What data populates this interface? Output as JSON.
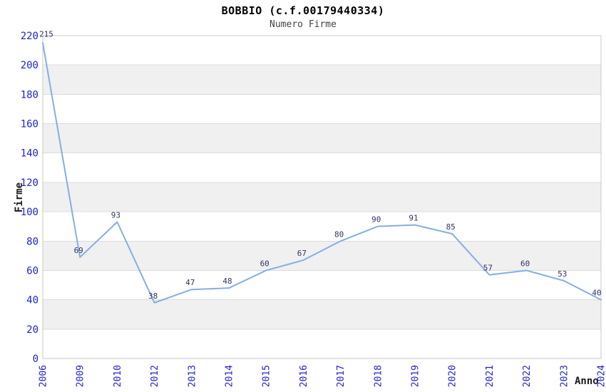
{
  "header": {
    "title": "BOBBIO (c.f.00179440334)",
    "subtitle": "Numero Firme"
  },
  "chart_data": {
    "type": "line",
    "title": "BOBBIO (c.f.00179440334)",
    "subtitle": "Numero Firme",
    "xlabel": "Anno",
    "ylabel": "Firme",
    "categories": [
      "2006",
      "2009",
      "2010",
      "2012",
      "2013",
      "2014",
      "2015",
      "2016",
      "2017",
      "2018",
      "2019",
      "2020",
      "2021",
      "2022",
      "2023",
      "2024"
    ],
    "values": [
      215,
      69,
      93,
      38,
      47,
      48,
      60,
      67,
      80,
      90,
      91,
      85,
      57,
      60,
      53,
      40
    ],
    "yticks": [
      0,
      20,
      40,
      60,
      80,
      100,
      120,
      140,
      160,
      180,
      200,
      220
    ],
    "ylim": [
      0,
      220
    ],
    "ytick_step": 20,
    "grid": "horizontal-alternating-bands",
    "legend": "none",
    "point_labels": true,
    "x_tick_rotation": -90,
    "colors": {
      "line": "#85aee3",
      "tick_labels": "#2222cc",
      "point_labels": "#333366",
      "band": "#f0f0f0",
      "gridline": "#dcdcdc",
      "border": "#c9c9c9",
      "title": "#000000",
      "subtitle": "#444444",
      "axis_titles": "#1a1a1a",
      "background": "#ffffff"
    }
  }
}
